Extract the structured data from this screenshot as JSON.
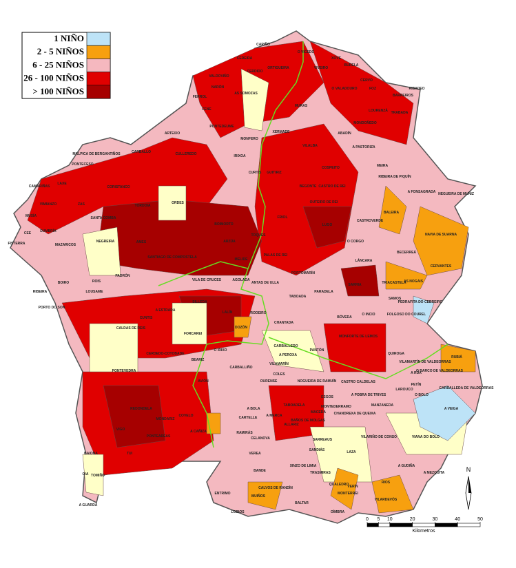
{
  "legend": [
    {
      "label": "1 NIÑO",
      "color": "#bde3f7"
    },
    {
      "label": "2 - 5 NIÑOS",
      "color": "#f7a00f"
    },
    {
      "label": "6 - 25 NIÑOS",
      "color": "#f5b8bf"
    },
    {
      "label": "26 - 100 NIÑOS",
      "color": "#e00000"
    },
    {
      "label": "> 100 NIÑOS",
      "color": "#a60000"
    }
  ],
  "municipalities": [
    "CARIÑO",
    "CEDEIRA",
    "VALDOVIÑO",
    "CERDIDO",
    "ORTIGUEIRA",
    "O VICEDO",
    "VIVEIRO",
    "XOVE",
    "BURELA",
    "CERVO",
    "FOZ",
    "O VALADOURO",
    "BARREIROS",
    "RIBADEO",
    "TRABADA",
    "LOURENZÁ",
    "MONDOÑEDO",
    "ABADÍN",
    "A PASTORIZA",
    "VILALBA",
    "XERMADE",
    "MURAS",
    "AS SOMOZAS",
    "NARÓN",
    "FERROL",
    "FENE",
    "PONTEDEUME",
    "MONFERO",
    "IRIXOA",
    "CURTIS",
    "ARTEIXO",
    "CULLEREDO",
    "CARBALLO",
    "MALPICA DE BERGANTIÑOS",
    "PONTECESO",
    "LAXE",
    "CAMARIÑAS",
    "VIMIANZO",
    "ZAS",
    "CORISTANCO",
    "ORDES",
    "TORDOIA",
    "MUXÍA",
    "CEE",
    "FISTERRA",
    "DUMBRÍA",
    "MAZARICOS",
    "SANTA COMBA",
    "NEGREIRA",
    "AMES",
    "SANTIAGO DE COMPOSTELA",
    "BOIMORTO",
    "ARZÚA",
    "MELIDE",
    "TOQUES",
    "FRIOL",
    "GUITIRIZ",
    "BEGONTE",
    "LUGO",
    "OUTEIRO DE REI",
    "CASTRO DE REI",
    "COSPEITO",
    "MEIRA",
    "RIBEIRA DE PIQUÍN",
    "A FONSAGRADA",
    "NEGUEIRA DE MUÑIZ",
    "BALEIRA",
    "CASTROVERDE",
    "NAVIA DE SUARNA",
    "BECERREÁ",
    "CERVANTES",
    "AS NOGAIS",
    "TRIACASTELA",
    "SAMOS",
    "PEDRAFITA DO CEBREIRO",
    "FOLGOSO DO COUREL",
    "O INCIO",
    "SARRIA",
    "LÁNCARA",
    "O CORGO",
    "PALAS DE REI",
    "PORTOMARÍN",
    "PARADELA",
    "ANTAS DE ULLA",
    "TABOADA",
    "A ESTRADA",
    "LALÍN",
    "SILLEDA",
    "VILA DE CRUCES",
    "AGOLADA",
    "RODEIRO",
    "DOZÓN",
    "CHANTADA",
    "CARBALLEDO",
    "BÓVEDA",
    "MONFORTE DE LEMOS",
    "PANTÓN",
    "QUIROGA",
    "PADRÓN",
    "ROIS",
    "BOIRO",
    "RIBEIRA",
    "PORTO DO SON",
    "LOUSAME",
    "CUNTIS",
    "CALDAS DE REIS",
    "FORCAREI",
    "CERDEDO-COTOBADE",
    "PONTEVEDRA",
    "VIGO",
    "REDONDELA",
    "MONDARIZ",
    "PONTEAREAS",
    "TUI",
    "TOMIÑO",
    "OIA",
    "BAIONA",
    "A GUARDA",
    "COVELO",
    "A CAÑIZA",
    "AVIÓN",
    "BEARIZ",
    "O IRIXO",
    "CARBALLIÑO",
    "OURENSE",
    "COLES",
    "VILAMARÍN",
    "A PEROXA",
    "CELANOVA",
    "BANDE",
    "LOBIOS",
    "ENTRIMO",
    "MUIÑOS",
    "CALVOS DE RANDÍN",
    "BALTAR",
    "XINZO DE LIMIA",
    "SANDIÁS",
    "TRASMIRAS",
    "QUALEDRO",
    "MONTERREI",
    "VERÍN",
    "OÍMBRA",
    "VILARDEVÓS",
    "RIOS",
    "A GUDIÑA",
    "LAZA",
    "VILARIÑO DE CONSO",
    "VIANA DO BOLO",
    "MANZANEDA",
    "A POBRA DE TRIVES",
    "LAROUCO",
    "O BOLO",
    "PETÍN",
    "A VEIGA",
    "CARBALLEDA DE VALDEORRAS",
    "RUBIÁ",
    "O BARCO DE VALDEORRAS",
    "VILAMARTÍN DE VALDEORRAS",
    "A RÚA",
    "CASTRO CALDELAS",
    "MACEDA",
    "MONTEDERRAMO",
    "ALLARIZ",
    "RAMIRÁS",
    "VEREA",
    "ESGOS",
    "NOGUEIRA DE RAMUÍN",
    "CHANDREXA DE QUEIXA",
    "A MEZQUITA",
    "SARREAUS",
    "A BOLA",
    "A MERCA",
    "TABOADELA",
    "BAÑOS DE MOLGAS",
    "CARTELLE"
  ],
  "scale_bar": {
    "ticks": [
      0,
      5,
      10,
      20,
      30,
      40,
      50
    ],
    "unit_label": "Kilometros"
  },
  "north_label": "N"
}
